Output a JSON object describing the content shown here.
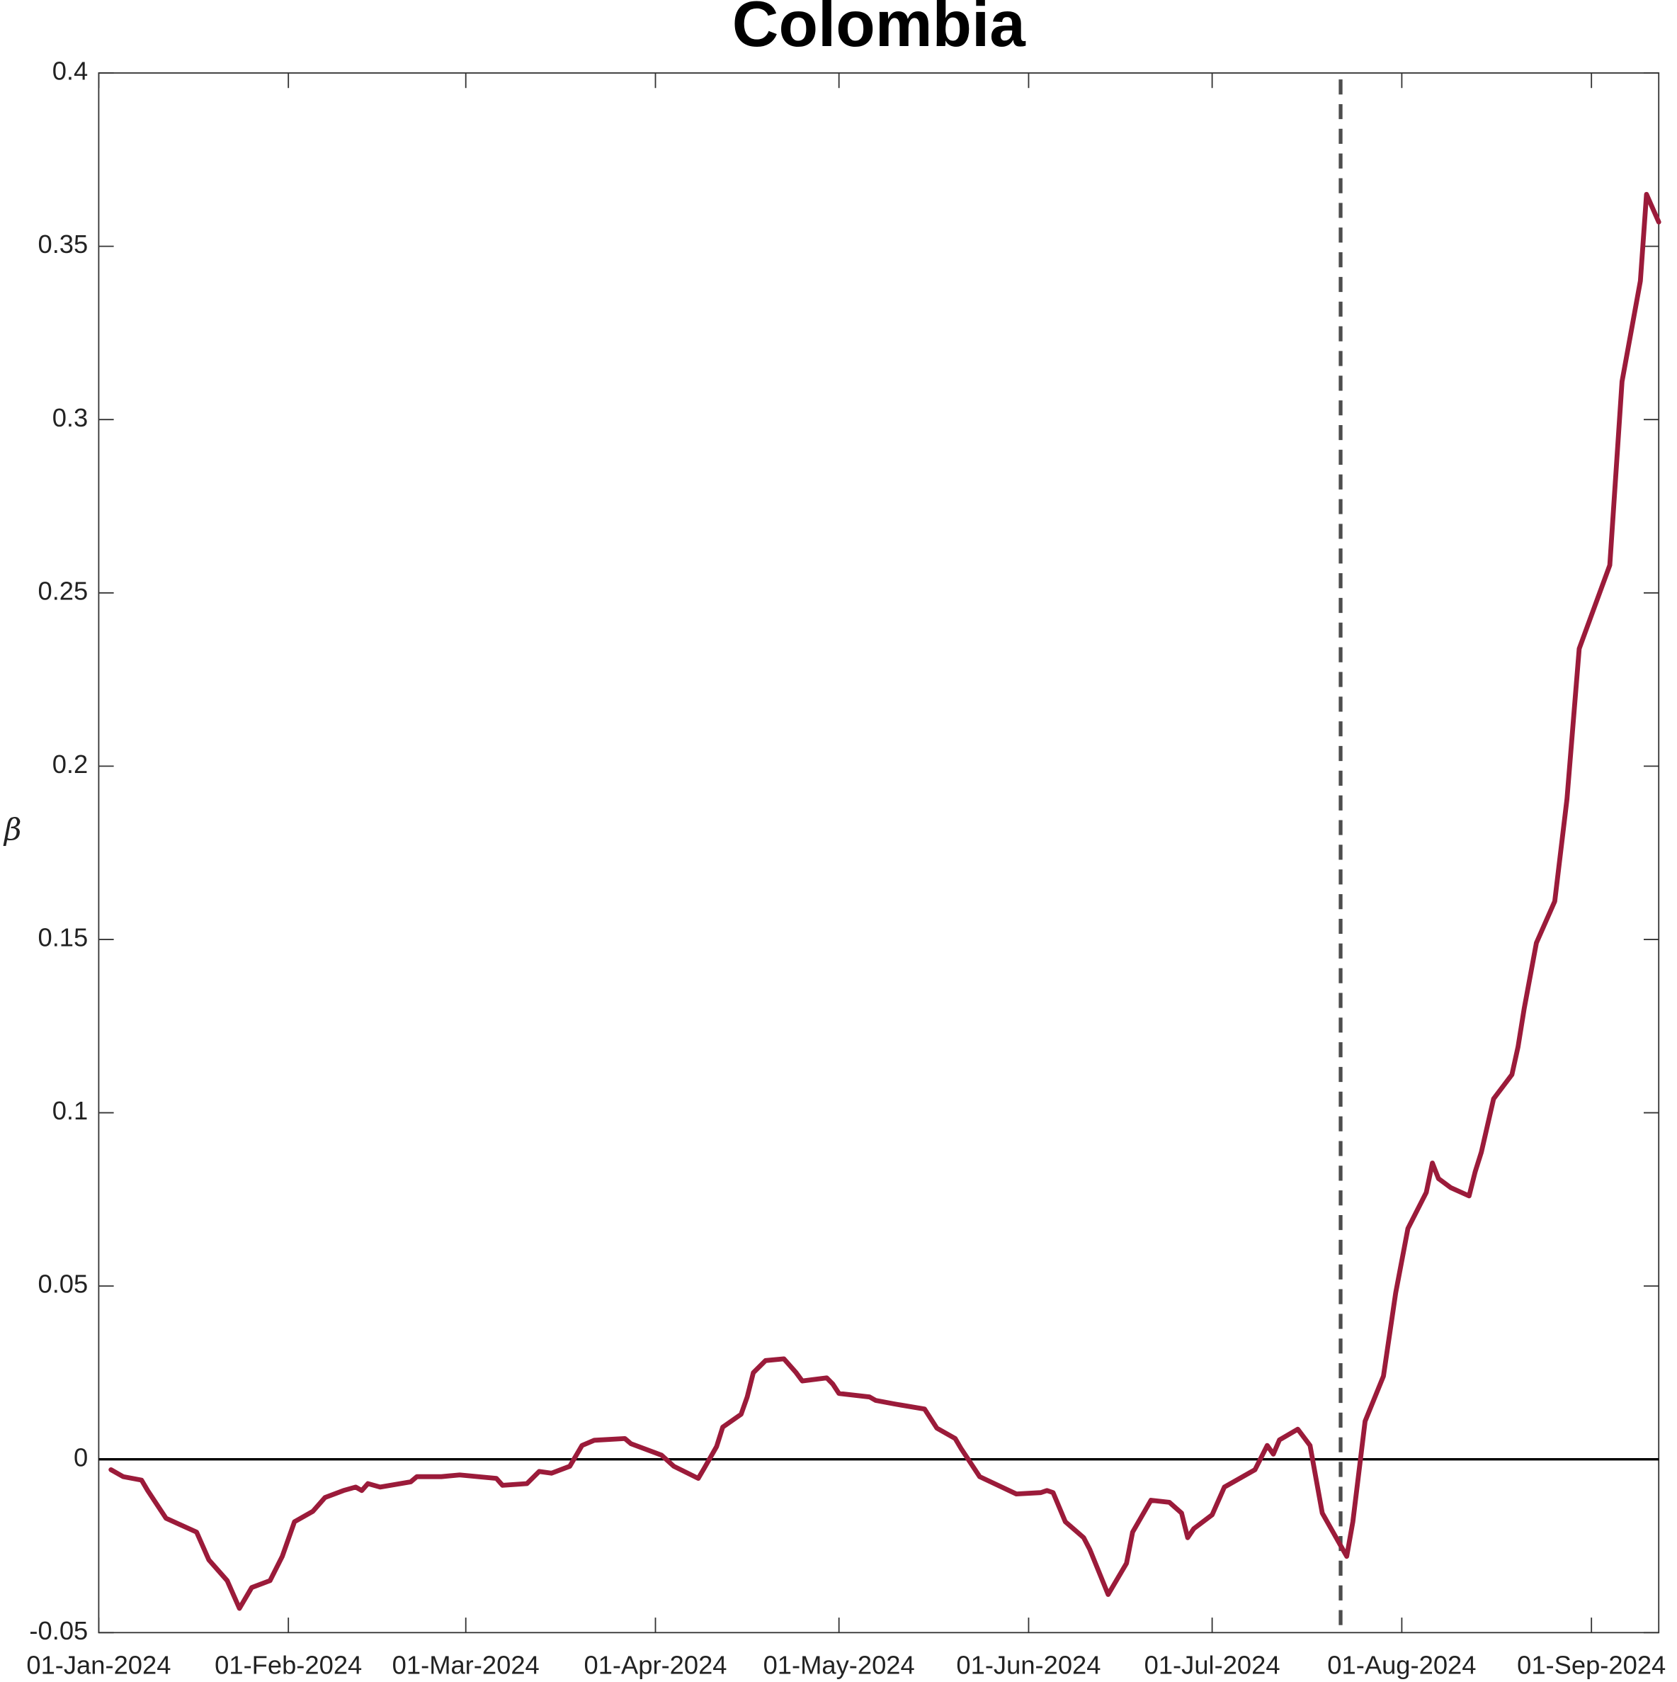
{
  "chart_data": {
    "type": "line",
    "title": "Colombia",
    "ylabel": "β",
    "color": "#9b1b3a",
    "x": [
      "2024-01-03",
      "2024-01-05",
      "2024-01-08",
      "2024-01-09",
      "2024-01-12",
      "2024-01-17",
      "2024-01-19",
      "2024-01-22",
      "2024-01-24",
      "2024-01-26",
      "2024-01-29",
      "2024-01-31",
      "2024-02-02",
      "2024-02-05",
      "2024-02-07",
      "2024-02-10",
      "2024-02-12",
      "2024-02-13",
      "2024-02-14",
      "2024-02-16",
      "2024-02-21",
      "2024-02-22",
      "2024-02-26",
      "2024-02-29",
      "2024-03-06",
      "2024-03-07",
      "2024-03-11",
      "2024-03-13",
      "2024-03-15",
      "2024-03-18",
      "2024-03-20",
      "2024-03-22",
      "2024-03-27",
      "2024-03-28",
      "2024-04-02",
      "2024-04-04",
      "2024-04-08",
      "2024-04-09",
      "2024-04-11",
      "2024-04-12",
      "2024-04-15",
      "2024-04-16",
      "2024-04-17",
      "2024-04-19",
      "2024-04-22",
      "2024-04-24",
      "2024-04-25",
      "2024-04-29",
      "2024-04-30",
      "2024-05-01",
      "2024-05-06",
      "2024-05-07",
      "2024-05-10",
      "2024-05-15",
      "2024-05-17",
      "2024-05-20",
      "2024-05-21",
      "2024-05-24",
      "2024-05-30",
      "2024-06-03",
      "2024-06-04",
      "2024-06-05",
      "2024-06-07",
      "2024-06-10",
      "2024-06-11",
      "2024-06-14",
      "2024-06-17",
      "2024-06-18",
      "2024-06-21",
      "2024-06-24",
      "2024-06-26",
      "2024-06-27",
      "2024-06-28",
      "2024-07-01",
      "2024-07-03",
      "2024-07-08",
      "2024-07-10",
      "2024-07-11",
      "2024-07-12",
      "2024-07-15",
      "2024-07-17",
      "2024-07-19",
      "2024-07-23",
      "2024-07-24",
      "2024-07-26",
      "2024-07-29",
      "2024-07-31",
      "2024-08-02",
      "2024-08-05",
      "2024-08-06",
      "2024-08-07",
      "2024-08-09",
      "2024-08-12",
      "2024-08-13",
      "2024-08-14",
      "2024-08-16",
      "2024-08-19",
      "2024-08-20",
      "2024-08-21",
      "2024-08-23",
      "2024-08-26",
      "2024-08-28",
      "2024-08-30",
      "2024-09-04",
      "2024-09-06",
      "2024-09-09",
      "2024-09-10",
      "2024-09-12"
    ],
    "values": [
      -0.003,
      -0.005,
      -0.006,
      -0.009,
      -0.017,
      -0.021,
      -0.029,
      -0.035,
      -0.043,
      -0.037,
      -0.035,
      -0.028,
      -0.018,
      -0.015,
      -0.011,
      -0.009,
      -0.008,
      -0.009,
      -0.007,
      -0.008,
      -0.0065,
      -0.005,
      -0.005,
      -0.0045,
      -0.0055,
      -0.0075,
      -0.007,
      -0.0035,
      -0.004,
      -0.002,
      0.004,
      0.0055,
      0.006,
      0.0045,
      0.0012,
      -0.002,
      -0.0055,
      -0.0025,
      0.0037,
      0.0093,
      0.013,
      0.018,
      0.025,
      0.0285,
      0.029,
      0.025,
      0.0226,
      0.0235,
      0.0217,
      0.019,
      0.018,
      0.017,
      0.016,
      0.0145,
      0.009,
      0.006,
      0.003,
      -0.005,
      -0.01,
      -0.0096,
      -0.009,
      -0.0096,
      -0.018,
      -0.0226,
      -0.026,
      -0.039,
      -0.03,
      -0.021,
      -0.0118,
      -0.0124,
      -0.0155,
      -0.0226,
      -0.02,
      -0.016,
      -0.008,
      -0.003,
      0.004,
      0.0015,
      0.0056,
      0.0087,
      0.004,
      -0.0155,
      -0.028,
      -0.018,
      0.011,
      0.024,
      0.048,
      0.0666,
      0.077,
      0.0855,
      0.081,
      0.0784,
      0.076,
      0.083,
      0.0886,
      0.104,
      0.111,
      0.119,
      0.13,
      0.149,
      0.161,
      0.1905,
      0.2339,
      0.258,
      0.311,
      0.34,
      0.365,
      0.357
    ],
    "xlim": [
      "2024-01-01",
      "2024-09-12"
    ],
    "xticks": [
      {
        "value": "2024-01-01",
        "label": "01-Jan-2024"
      },
      {
        "value": "2024-02-01",
        "label": "01-Feb-2024"
      },
      {
        "value": "2024-03-01",
        "label": "01-Mar-2024"
      },
      {
        "value": "2024-04-01",
        "label": "01-Apr-2024"
      },
      {
        "value": "2024-05-01",
        "label": "01-May-2024"
      },
      {
        "value": "2024-06-01",
        "label": "01-Jun-2024"
      },
      {
        "value": "2024-07-01",
        "label": "01-Jul-2024"
      },
      {
        "value": "2024-08-01",
        "label": "01-Aug-2024"
      },
      {
        "value": "2024-09-01",
        "label": "01-Sep-2024"
      }
    ],
    "ylim": [
      -0.05,
      0.4
    ],
    "yticks": [
      -0.05,
      0,
      0.05,
      0.1,
      0.15,
      0.2,
      0.25,
      0.3,
      0.35,
      0.4
    ],
    "hline": 0,
    "vline": "2024-07-22",
    "grid": false
  }
}
